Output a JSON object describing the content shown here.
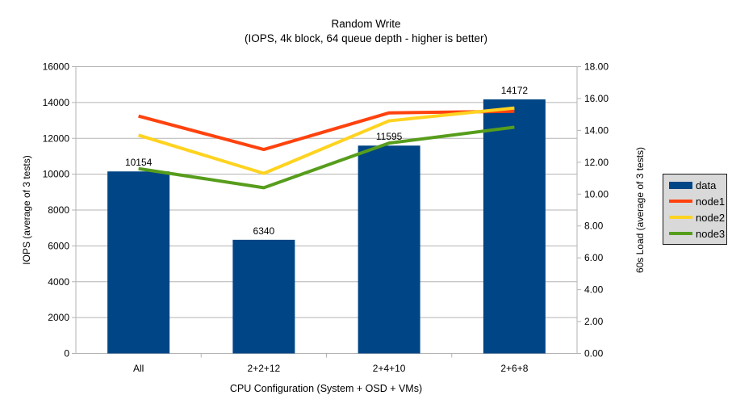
{
  "chart_data": {
    "type": "bar",
    "title": "Random Write",
    "subtitle": "(IOPS, 4k block, 64 queue depth - higher is better)",
    "categories": [
      "All",
      "2+2+12",
      "2+4+10",
      "2+6+8"
    ],
    "bar_series": {
      "name": "data",
      "color": "#004586",
      "axis": "left",
      "values": [
        10154,
        6340,
        11595,
        14172
      ],
      "data_labels": [
        "10154",
        "6340",
        "11595",
        "14172"
      ]
    },
    "line_series": [
      {
        "name": "node1",
        "color": "#ff420e",
        "axis": "right",
        "values": [
          14.9,
          12.8,
          15.1,
          15.2
        ]
      },
      {
        "name": "node2",
        "color": "#ffd320",
        "axis": "right",
        "values": [
          13.7,
          11.3,
          14.6,
          15.4
        ]
      },
      {
        "name": "node3",
        "color": "#579d1c",
        "axis": "right",
        "values": [
          11.6,
          10.4,
          13.2,
          14.2
        ]
      }
    ],
    "x_axis": {
      "label": "CPU Configuration (System + OSD + VMs)"
    },
    "left_axis": {
      "label": "IOPS (average of 3 tests)",
      "min": 0,
      "max": 16000,
      "step": 2000
    },
    "right_axis": {
      "label": "60s Load (average of 3 tests)",
      "min": 0,
      "max": 18,
      "step": 2,
      "decimals": 2
    },
    "grid": true,
    "legend": {
      "position": "right",
      "entries": [
        {
          "label": "data",
          "color": "#004586",
          "swatch": "rect"
        },
        {
          "label": "node1",
          "color": "#ff420e",
          "swatch": "line"
        },
        {
          "label": "node2",
          "color": "#ffd320",
          "swatch": "line"
        },
        {
          "label": "node3",
          "color": "#579d1c",
          "swatch": "line"
        }
      ]
    },
    "colors": {
      "grid": "#b3b3b3",
      "axis": "#b3b3b3",
      "text": "#000000",
      "legend_bg": "#d9d9d9",
      "legend_border": "#1a1a1a"
    }
  }
}
